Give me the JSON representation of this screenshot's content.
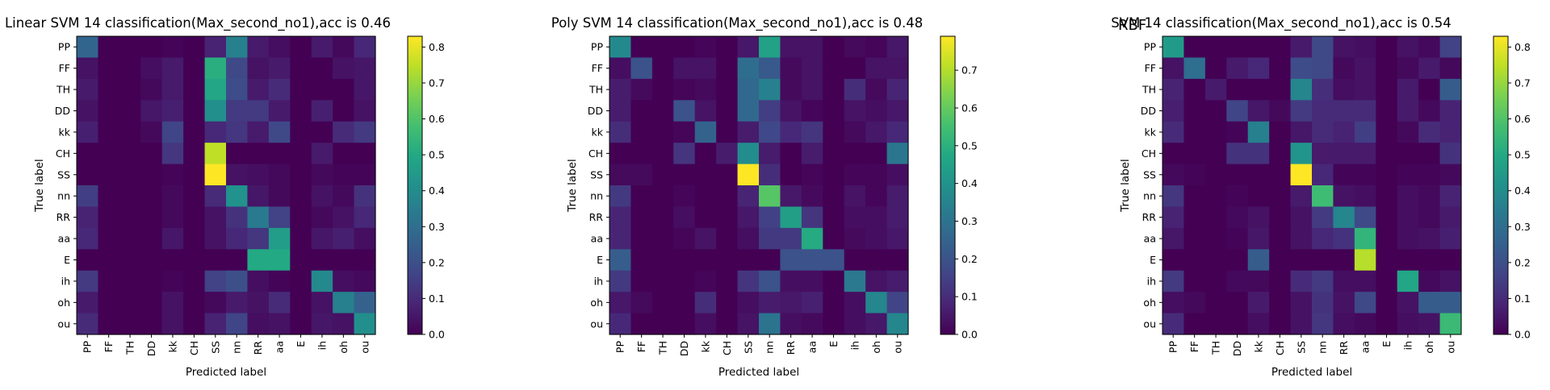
{
  "figure": {
    "extra_label": "RBF"
  },
  "chart_data": [
    {
      "type": "heatmap",
      "title": "Linear SVM 14 classification(Max_second_no1),acc is 0.46",
      "xlabel": "Predicted label",
      "ylabel": "True label",
      "labels": [
        "PP",
        "FF",
        "TH",
        "DD",
        "kk",
        "CH",
        "SS",
        "nn",
        "RR",
        "aa",
        "E",
        "ih",
        "oh",
        "ou"
      ],
      "colorbar": {
        "min": 0.0,
        "max": 0.83,
        "ticks": [
          0.0,
          0.1,
          0.2,
          0.3,
          0.4,
          0.5,
          0.6,
          0.7,
          0.8
        ]
      },
      "matrix": [
        [
          0.27,
          0.0,
          0.0,
          0.0,
          0.01,
          0.0,
          0.08,
          0.36,
          0.06,
          0.03,
          0.0,
          0.06,
          0.02,
          0.09
        ],
        [
          0.04,
          0.0,
          0.0,
          0.03,
          0.06,
          0.0,
          0.52,
          0.18,
          0.04,
          0.06,
          0.0,
          0.0,
          0.04,
          0.05
        ],
        [
          0.06,
          0.0,
          0.0,
          0.02,
          0.06,
          0.0,
          0.49,
          0.19,
          0.06,
          0.1,
          0.0,
          0.0,
          0.0,
          0.05
        ],
        [
          0.04,
          0.0,
          0.0,
          0.05,
          0.07,
          0.0,
          0.41,
          0.14,
          0.14,
          0.06,
          0.0,
          0.07,
          0.0,
          0.04
        ],
        [
          0.07,
          0.0,
          0.0,
          0.02,
          0.17,
          0.0,
          0.09,
          0.13,
          0.06,
          0.18,
          0.0,
          0.0,
          0.1,
          0.14
        ],
        [
          0.0,
          0.0,
          0.0,
          0.0,
          0.13,
          0.0,
          0.75,
          0.0,
          0.0,
          0.0,
          0.0,
          0.06,
          0.0,
          0.0
        ],
        [
          0.0,
          0.0,
          0.0,
          0.0,
          0.01,
          0.0,
          0.83,
          0.04,
          0.03,
          0.02,
          0.0,
          0.02,
          0.01,
          0.01
        ],
        [
          0.15,
          0.0,
          0.0,
          0.0,
          0.02,
          0.0,
          0.1,
          0.42,
          0.05,
          0.02,
          0.0,
          0.04,
          0.02,
          0.12
        ],
        [
          0.08,
          0.0,
          0.0,
          0.0,
          0.02,
          0.0,
          0.04,
          0.12,
          0.34,
          0.16,
          0.0,
          0.02,
          0.04,
          0.09
        ],
        [
          0.09,
          0.0,
          0.0,
          0.0,
          0.05,
          0.0,
          0.04,
          0.09,
          0.13,
          0.46,
          0.0,
          0.05,
          0.07,
          0.03
        ],
        [
          0.0,
          0.0,
          0.0,
          0.0,
          0.0,
          0.0,
          0.0,
          0.0,
          0.5,
          0.5,
          0.0,
          0.0,
          0.0,
          0.0
        ],
        [
          0.14,
          0.0,
          0.0,
          0.0,
          0.01,
          0.0,
          0.16,
          0.2,
          0.03,
          0.01,
          0.0,
          0.39,
          0.03,
          0.02
        ],
        [
          0.06,
          0.0,
          0.0,
          0.0,
          0.04,
          0.0,
          0.02,
          0.06,
          0.04,
          0.1,
          0.0,
          0.04,
          0.36,
          0.26
        ],
        [
          0.1,
          0.0,
          0.0,
          0.0,
          0.04,
          0.0,
          0.08,
          0.17,
          0.03,
          0.04,
          0.0,
          0.05,
          0.04,
          0.41
        ]
      ]
    },
    {
      "type": "heatmap",
      "title": "Poly SVM 14 classification(Max_second_no1),acc is 0.48",
      "xlabel": "Predicted label",
      "ylabel": "True label",
      "labels": [
        "PP",
        "FF",
        "TH",
        "DD",
        "kk",
        "CH",
        "SS",
        "nn",
        "RR",
        "aa",
        "E",
        "ih",
        "oh",
        "ou"
      ],
      "colorbar": {
        "min": 0.0,
        "max": 0.79,
        "ticks": [
          0.0,
          0.1,
          0.2,
          0.3,
          0.4,
          0.5,
          0.6,
          0.7
        ]
      },
      "matrix": [
        [
          0.37,
          0.0,
          0.0,
          0.0,
          0.01,
          0.0,
          0.05,
          0.45,
          0.04,
          0.04,
          0.0,
          0.02,
          0.01,
          0.05
        ],
        [
          0.03,
          0.2,
          0.0,
          0.04,
          0.04,
          0.0,
          0.28,
          0.22,
          0.02,
          0.04,
          0.0,
          0.0,
          0.04,
          0.04
        ],
        [
          0.06,
          0.02,
          0.0,
          0.01,
          0.02,
          0.0,
          0.27,
          0.34,
          0.02,
          0.04,
          0.0,
          0.1,
          0.02,
          0.08
        ],
        [
          0.06,
          0.0,
          0.0,
          0.2,
          0.04,
          0.0,
          0.27,
          0.14,
          0.04,
          0.01,
          0.0,
          0.04,
          0.03,
          0.05
        ],
        [
          0.1,
          0.0,
          0.0,
          0.01,
          0.25,
          0.0,
          0.06,
          0.17,
          0.09,
          0.12,
          0.0,
          0.02,
          0.05,
          0.09
        ],
        [
          0.0,
          0.0,
          0.0,
          0.12,
          0.0,
          0.06,
          0.38,
          0.06,
          0.0,
          0.06,
          0.0,
          0.0,
          0.0,
          0.31
        ],
        [
          0.02,
          0.02,
          0.0,
          0.0,
          0.0,
          0.0,
          0.79,
          0.1,
          0.0,
          0.01,
          0.0,
          0.01,
          0.01,
          0.03
        ],
        [
          0.13,
          0.0,
          0.0,
          0.01,
          0.0,
          0.0,
          0.08,
          0.58,
          0.05,
          0.02,
          0.0,
          0.04,
          0.01,
          0.06
        ],
        [
          0.08,
          0.0,
          0.0,
          0.03,
          0.0,
          0.0,
          0.05,
          0.15,
          0.44,
          0.12,
          0.0,
          0.03,
          0.03,
          0.06
        ],
        [
          0.08,
          0.0,
          0.0,
          0.01,
          0.04,
          0.0,
          0.03,
          0.13,
          0.13,
          0.48,
          0.0,
          0.02,
          0.03,
          0.05
        ],
        [
          0.23,
          0.0,
          0.0,
          0.0,
          0.0,
          0.0,
          0.0,
          0.0,
          0.2,
          0.2,
          0.2,
          0.0,
          0.0,
          0.0
        ],
        [
          0.13,
          0.0,
          0.0,
          0.0,
          0.01,
          0.0,
          0.12,
          0.2,
          0.03,
          0.03,
          0.0,
          0.32,
          0.04,
          0.06
        ],
        [
          0.05,
          0.02,
          0.0,
          0.0,
          0.1,
          0.0,
          0.03,
          0.06,
          0.05,
          0.07,
          0.0,
          0.03,
          0.36,
          0.16
        ],
        [
          0.09,
          0.0,
          0.0,
          0.0,
          0.03,
          0.0,
          0.04,
          0.3,
          0.03,
          0.02,
          0.0,
          0.03,
          0.05,
          0.36
        ]
      ]
    },
    {
      "type": "heatmap",
      "title": "SVM 14 classification(Max_second_no1),acc is 0.54",
      "xlabel": "Predicted label",
      "ylabel": "True label",
      "labels": [
        "PP",
        "FF",
        "TH",
        "DD",
        "kk",
        "CH",
        "SS",
        "nn",
        "RR",
        "aa",
        "E",
        "ih",
        "oh",
        "ou"
      ],
      "colorbar": {
        "min": 0.0,
        "max": 0.83,
        "ticks": [
          0.0,
          0.1,
          0.2,
          0.3,
          0.4,
          0.5,
          0.6,
          0.7,
          0.8
        ]
      },
      "matrix": [
        [
          0.45,
          0.0,
          0.0,
          0.0,
          0.0,
          0.0,
          0.06,
          0.18,
          0.04,
          0.03,
          0.0,
          0.04,
          0.02,
          0.16
        ],
        [
          0.04,
          0.3,
          0.0,
          0.06,
          0.09,
          0.0,
          0.19,
          0.18,
          0.02,
          0.04,
          0.0,
          0.02,
          0.06,
          0.02
        ],
        [
          0.08,
          0.0,
          0.06,
          0.0,
          0.0,
          0.0,
          0.38,
          0.11,
          0.03,
          0.04,
          0.0,
          0.06,
          0.0,
          0.24
        ],
        [
          0.07,
          0.0,
          0.0,
          0.17,
          0.05,
          0.02,
          0.14,
          0.1,
          0.1,
          0.1,
          0.0,
          0.06,
          0.02,
          0.08
        ],
        [
          0.1,
          0.0,
          0.0,
          0.01,
          0.36,
          0.0,
          0.05,
          0.1,
          0.08,
          0.15,
          0.0,
          0.02,
          0.1,
          0.08
        ],
        [
          0.0,
          0.0,
          0.0,
          0.12,
          0.12,
          0.0,
          0.43,
          0.06,
          0.06,
          0.06,
          0.0,
          0.0,
          0.0,
          0.12
        ],
        [
          0.02,
          0.01,
          0.0,
          0.0,
          0.0,
          0.0,
          0.83,
          0.09,
          0.01,
          0.01,
          0.0,
          0.01,
          0.01,
          0.02
        ],
        [
          0.13,
          0.0,
          0.0,
          0.01,
          0.0,
          0.0,
          0.06,
          0.57,
          0.04,
          0.03,
          0.0,
          0.03,
          0.02,
          0.08
        ],
        [
          0.08,
          0.0,
          0.0,
          0.02,
          0.04,
          0.0,
          0.04,
          0.14,
          0.38,
          0.18,
          0.0,
          0.03,
          0.02,
          0.06
        ],
        [
          0.05,
          0.0,
          0.0,
          0.01,
          0.05,
          0.0,
          0.04,
          0.09,
          0.12,
          0.54,
          0.0,
          0.03,
          0.04,
          0.07
        ],
        [
          0.0,
          0.0,
          0.0,
          0.0,
          0.24,
          0.0,
          0.0,
          0.0,
          0.0,
          0.74,
          0.0,
          0.0,
          0.0,
          0.0
        ],
        [
          0.14,
          0.0,
          0.0,
          0.02,
          0.02,
          0.0,
          0.1,
          0.14,
          0.03,
          0.03,
          0.0,
          0.49,
          0.02,
          0.04
        ],
        [
          0.03,
          0.02,
          0.0,
          0.0,
          0.06,
          0.0,
          0.04,
          0.12,
          0.04,
          0.18,
          0.0,
          0.04,
          0.24,
          0.24
        ],
        [
          0.1,
          0.0,
          0.0,
          0.0,
          0.03,
          0.0,
          0.04,
          0.13,
          0.03,
          0.02,
          0.0,
          0.03,
          0.04,
          0.56
        ]
      ]
    }
  ]
}
